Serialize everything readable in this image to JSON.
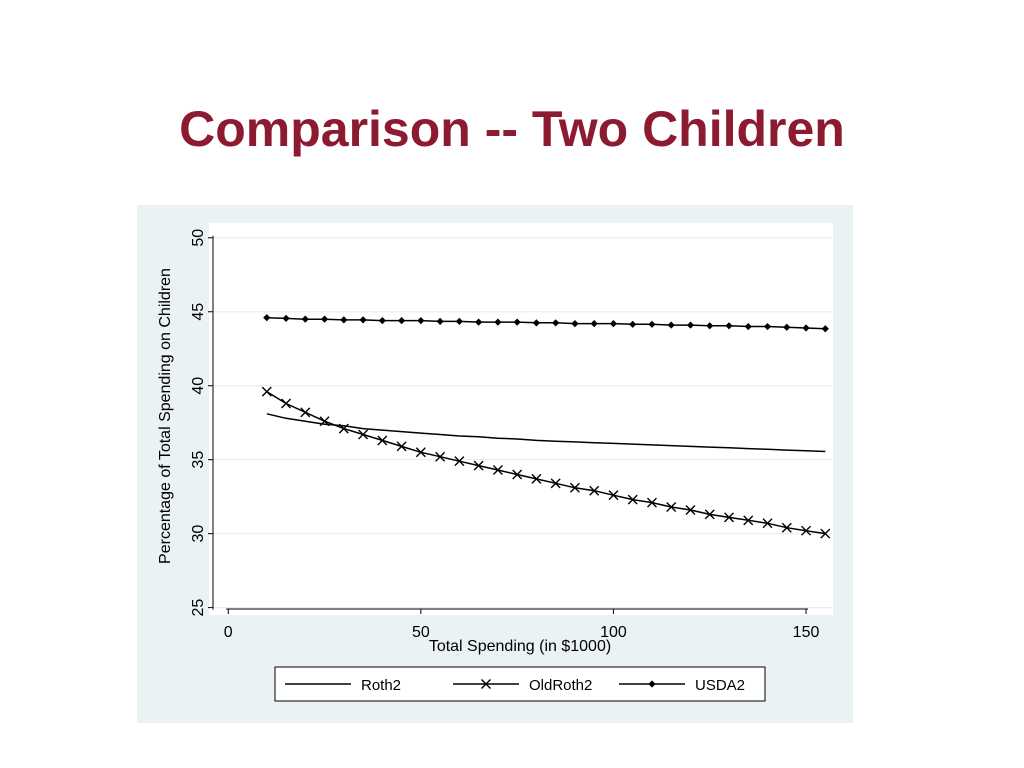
{
  "slide": {
    "title": "Comparison -- Two Children"
  },
  "chart_data": {
    "type": "line",
    "title": "",
    "xlabel": "Total Spending (in $1000)",
    "ylabel": "Percentage of Total Spending on Children",
    "xlim": [
      -5,
      157
    ],
    "ylim": [
      24.5,
      51
    ],
    "xticks": [
      0,
      50,
      100,
      150
    ],
    "yticks": [
      25,
      30,
      35,
      40,
      45,
      50
    ],
    "grid": true,
    "legend_position": "bottom",
    "x": [
      10,
      15,
      20,
      25,
      30,
      35,
      40,
      45,
      50,
      55,
      60,
      65,
      70,
      75,
      80,
      85,
      90,
      95,
      100,
      105,
      110,
      115,
      120,
      125,
      130,
      135,
      140,
      145,
      150,
      155
    ],
    "series": [
      {
        "name": "Roth2",
        "marker": "none",
        "color": "#000000",
        "values": [
          38.1,
          37.8,
          37.6,
          37.4,
          37.3,
          37.1,
          37.0,
          36.9,
          36.8,
          36.7,
          36.6,
          36.55,
          36.45,
          36.4,
          36.3,
          36.25,
          36.2,
          36.15,
          36.1,
          36.05,
          36.0,
          35.95,
          35.9,
          35.85,
          35.8,
          35.75,
          35.7,
          35.65,
          35.6,
          35.55
        ]
      },
      {
        "name": "OldRoth2",
        "marker": "x",
        "color": "#000000",
        "values": [
          39.6,
          38.8,
          38.2,
          37.6,
          37.1,
          36.7,
          36.3,
          35.9,
          35.5,
          35.2,
          34.9,
          34.6,
          34.3,
          34.0,
          33.7,
          33.4,
          33.1,
          32.9,
          32.6,
          32.3,
          32.1,
          31.8,
          31.6,
          31.3,
          31.1,
          30.9,
          30.7,
          30.4,
          30.2,
          30.0
        ]
      },
      {
        "name": "USDA2",
        "marker": "diamond",
        "color": "#000000",
        "values": [
          44.6,
          44.55,
          44.5,
          44.5,
          44.45,
          44.45,
          44.4,
          44.4,
          44.4,
          44.35,
          44.35,
          44.3,
          44.3,
          44.3,
          44.25,
          44.25,
          44.2,
          44.2,
          44.2,
          44.15,
          44.15,
          44.1,
          44.1,
          44.05,
          44.05,
          44.0,
          44.0,
          43.95,
          43.9,
          43.85
        ]
      }
    ]
  }
}
